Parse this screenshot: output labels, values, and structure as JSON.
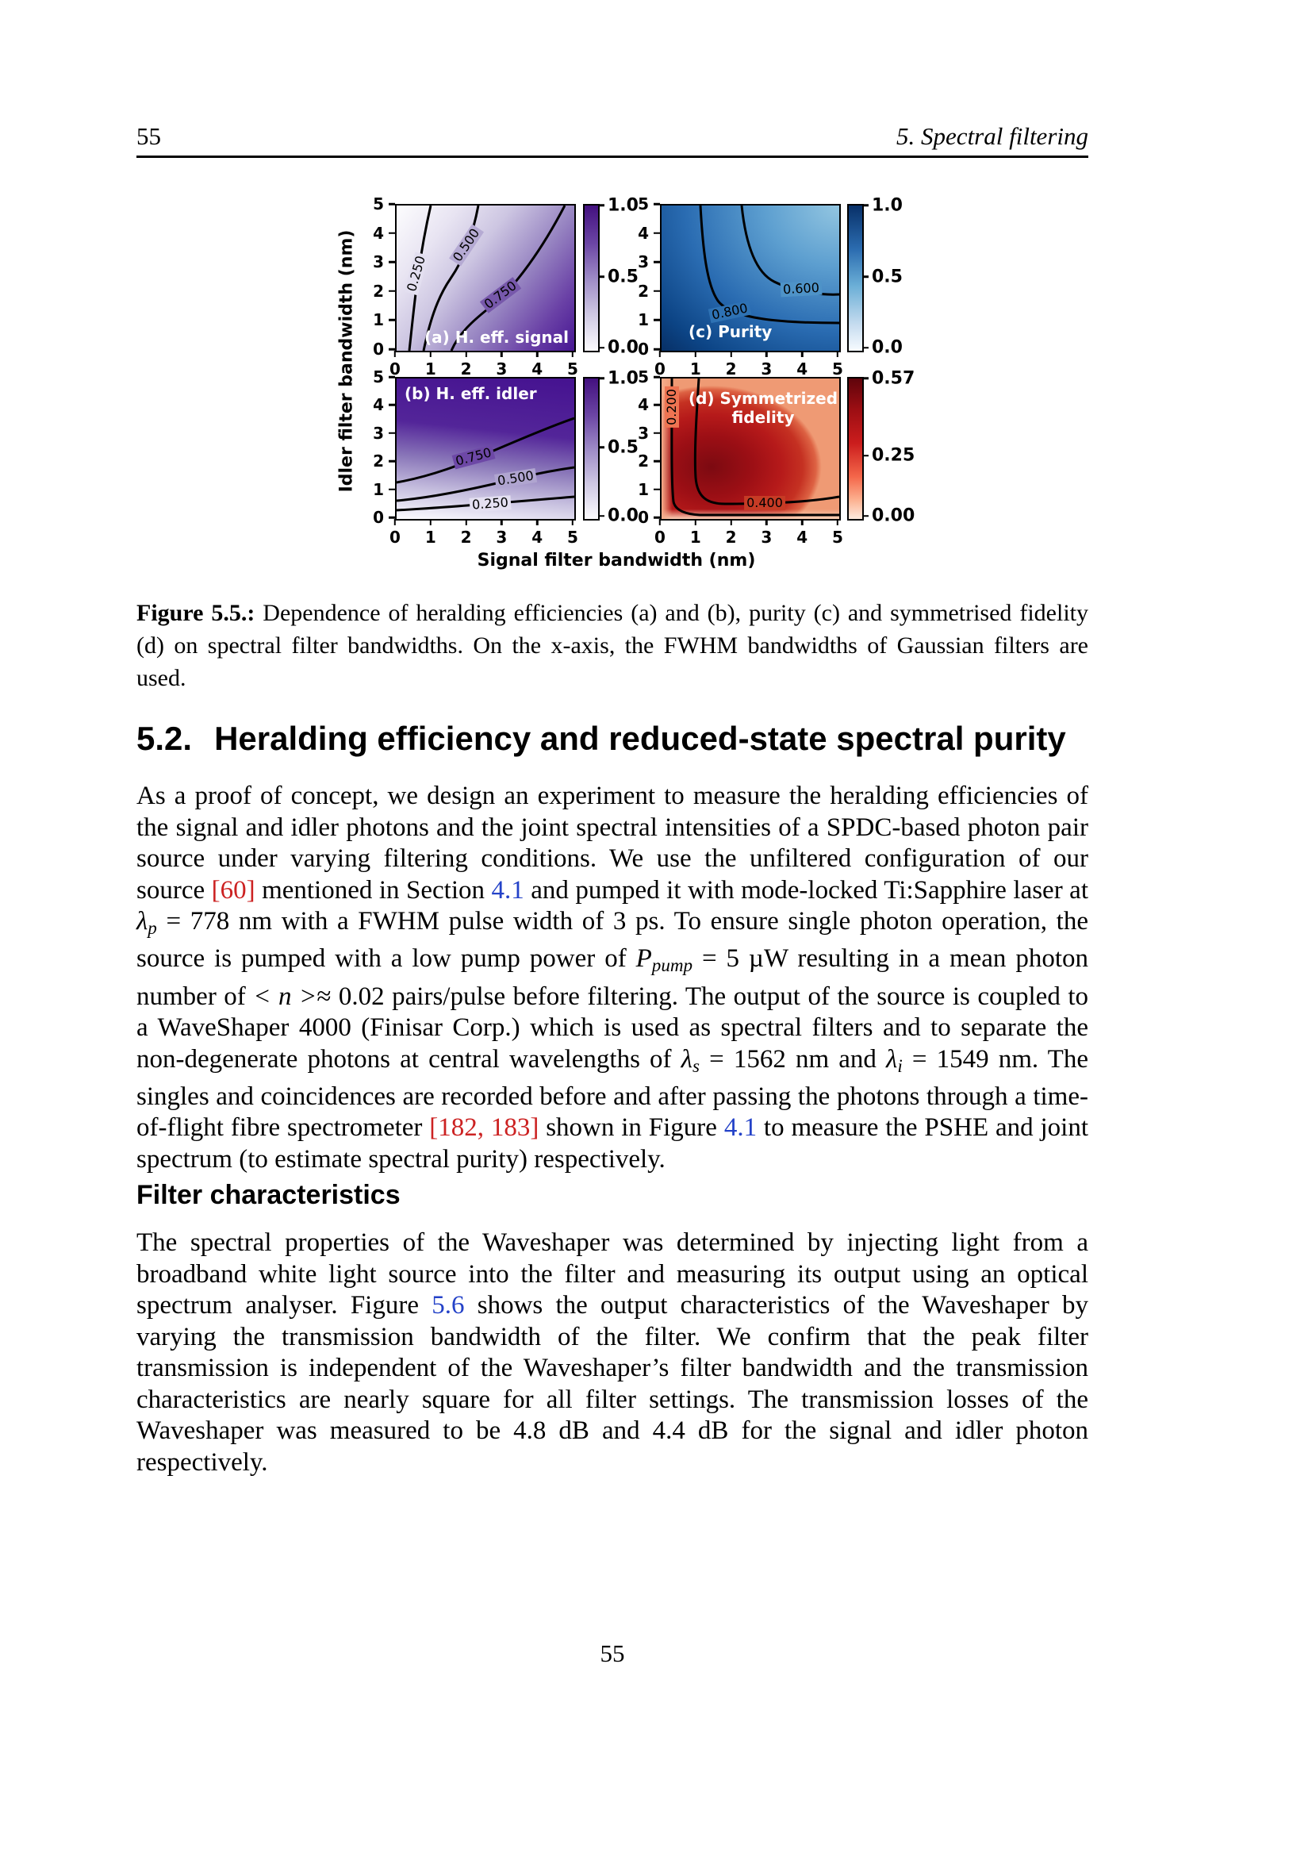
{
  "header": {
    "page_number": "55",
    "chapter": "5. Spectral filtering"
  },
  "figure": {
    "xticks": [
      "0",
      "1",
      "2",
      "3",
      "4",
      "5"
    ],
    "yticks": [
      "5",
      "4",
      "3",
      "2",
      "1",
      "0"
    ],
    "xlabel": "Signal filter bandwidth (nm)",
    "ylabel": "Idler filter bandwidth (nm)",
    "plots": {
      "a": {
        "label": "(a) H. eff. signal",
        "contours": [
          "0.250",
          "0.500",
          "0.750"
        ],
        "cb": [
          "1.0",
          "0.5",
          "0.0"
        ]
      },
      "c": {
        "label": "(c) Purity",
        "contours": [
          "0.800",
          "0.600"
        ],
        "cb": [
          "1.0",
          "0.5",
          "0.0"
        ]
      },
      "b": {
        "label": "(b) H. eff. idler",
        "contours": [
          "0.750",
          "0.500",
          "0.250"
        ],
        "cb": [
          "1.0",
          "0.5",
          "0.0"
        ]
      },
      "d": {
        "label": "(d) Symmetrized",
        "label2": "fidelity",
        "contours": [
          "0.200",
          "0.400"
        ],
        "cb": [
          "0.57",
          "0.25",
          "0.00"
        ]
      }
    }
  },
  "chart_data": [
    {
      "id": "a",
      "type": "contour",
      "title": "(a) H. eff. signal",
      "xlabel": "Signal filter bandwidth (nm)",
      "ylabel": "Idler filter bandwidth (nm)",
      "x_range": [
        0,
        5
      ],
      "y_range": [
        0,
        5
      ],
      "colormap": "Purples",
      "value_range": [
        0,
        1
      ],
      "colorbar_ticks": [
        1.0,
        0.5,
        0.0
      ],
      "contour_levels": [
        0.25,
        0.5,
        0.75
      ],
      "contour_paths": {
        "0.250": [
          [
            0.45,
            0
          ],
          [
            0.6,
            2.5
          ],
          [
            1.0,
            5
          ]
        ],
        "0.500": [
          [
            0.75,
            0
          ],
          [
            1.4,
            2.5
          ],
          [
            2.3,
            5
          ]
        ],
        "0.750": [
          [
            1.55,
            0
          ],
          [
            2.6,
            1.5
          ],
          [
            3.2,
            2.5
          ],
          [
            4.75,
            5
          ]
        ]
      },
      "shading": "light at top-left (low), dark purple at bottom-right (high)"
    },
    {
      "id": "c",
      "type": "contour",
      "title": "(c) Purity",
      "xlabel": "Signal filter bandwidth (nm)",
      "ylabel": "Idler filter bandwidth (nm)",
      "x_range": [
        0,
        5
      ],
      "y_range": [
        0,
        5
      ],
      "colormap": "Blues",
      "value_range": [
        0,
        1
      ],
      "colorbar_ticks": [
        1.0,
        0.5,
        0.0
      ],
      "contour_levels": [
        0.8,
        0.6
      ],
      "contour_paths": {
        "0.800": [
          [
            1.1,
            5
          ],
          [
            1.6,
            1.7
          ],
          [
            5,
            0.95
          ]
        ],
        "0.600": [
          [
            2.25,
            5
          ],
          [
            3.2,
            2.4
          ],
          [
            5,
            1.9
          ]
        ]
      },
      "shading": "dark blue (high purity) near small bandwidths, lighter toward top-right"
    },
    {
      "id": "b",
      "type": "contour",
      "title": "(b) H. eff. idler",
      "xlabel": "Signal filter bandwidth (nm)",
      "ylabel": "Idler filter bandwidth (nm)",
      "x_range": [
        0,
        5
      ],
      "y_range": [
        0,
        5
      ],
      "colormap": "Purples",
      "value_range": [
        0,
        1
      ],
      "colorbar_ticks": [
        1.0,
        0.5,
        0.0
      ],
      "contour_levels": [
        0.75,
        0.5,
        0.25
      ],
      "contour_paths": {
        "0.750": [
          [
            0,
            1.3
          ],
          [
            2,
            2.1
          ],
          [
            5,
            3.6
          ]
        ],
        "0.500": [
          [
            0,
            0.65
          ],
          [
            3,
            1.3
          ],
          [
            5,
            1.85
          ]
        ],
        "0.250": [
          [
            0,
            0.3
          ],
          [
            5,
            0.8
          ]
        ]
      },
      "shading": "dark purple at top (high), light at bottom (low)"
    },
    {
      "id": "d",
      "type": "contour",
      "title": "(d) Symmetrized fidelity",
      "xlabel": "Signal filter bandwidth (nm)",
      "ylabel": "Idler filter bandwidth (nm)",
      "x_range": [
        0,
        5
      ],
      "y_range": [
        0,
        5
      ],
      "colormap": "Reds",
      "value_range": [
        0,
        0.57
      ],
      "colorbar_ticks": [
        0.57,
        0.25,
        0.0
      ],
      "contour_levels": [
        0.2,
        0.4
      ],
      "contour_paths": {
        "0.200": [
          [
            0.3,
            5
          ],
          [
            0.3,
            0.5
          ],
          [
            0.8,
            0.15
          ],
          [
            5,
            0.15
          ]
        ],
        "0.400": [
          [
            1.05,
            5
          ],
          [
            1.0,
            0.8
          ],
          [
            2,
            0.5
          ],
          [
            5,
            0.75
          ]
        ]
      },
      "max_location": [
        1.5,
        1.8
      ],
      "shading": "darkest red (max ~0.57) near (1.5,1.8), light along left and bottom edges"
    }
  ],
  "caption": {
    "tag": "Figure 5.5.:",
    "text": " Dependence of heralding efficiencies (a) and (b), purity (c) and symmetrised fidelity (d) on spectral filter bandwidths. On the x-axis, the FWHM bandwidths of Gaussian filters are used."
  },
  "section": {
    "number": "5.2.",
    "title": "Heralding efficiency and reduced-state spectral purity"
  },
  "para1": [
    {
      "t": "tx",
      "v": "As a proof of concept, we design an experiment to measure the heralding efficiencies of the signal and idler photons and the joint spectral intensities of a SPDC-based photon pair source under varying filtering conditions. We use the unfiltered configuration of our source "
    },
    {
      "t": "cite",
      "v": "[60]"
    },
    {
      "t": "tx",
      "v": " mentioned in Section "
    },
    {
      "t": "ref",
      "v": "4.1"
    },
    {
      "t": "tx",
      "v": " and pumped it with mode-locked Ti:Sapphire laser at "
    },
    {
      "t": "it",
      "v": "λ"
    },
    {
      "t": "sb",
      "v": "p"
    },
    {
      "t": "tx",
      "v": " = 778 nm with a FWHM pulse width of 3 ps. To ensure single photon operation, the source is pumped with a low pump power of "
    },
    {
      "t": "it",
      "v": "P"
    },
    {
      "t": "sb",
      "v": "pump"
    },
    {
      "t": "tx",
      "v": " = 5 µW resulting in a mean photon number of "
    },
    {
      "t": "it",
      "v": "< n >"
    },
    {
      "t": "tx",
      "v": "≈ 0.02 pairs/pulse before filtering. The output of the source is coupled to a WaveShaper 4000 (Finisar Corp.) which is used as spectral filters and to separate the non-degenerate photons at central wavelengths of "
    },
    {
      "t": "it",
      "v": "λ"
    },
    {
      "t": "sb",
      "v": "s"
    },
    {
      "t": "tx",
      "v": " = 1562 nm and "
    },
    {
      "t": "it",
      "v": "λ"
    },
    {
      "t": "sb",
      "v": "i"
    },
    {
      "t": "tx",
      "v": " = 1549 nm. The singles and coincidences are recorded before and after passing the photons through a time-of-flight fibre spectrometer "
    },
    {
      "t": "cite",
      "v": "[182, 183]"
    },
    {
      "t": "tx",
      "v": " shown in Figure "
    },
    {
      "t": "ref",
      "v": "4.1"
    },
    {
      "t": "tx",
      "v": " to measure the PSHE and joint spectrum (to estimate spectral purity) respectively."
    }
  ],
  "subsection": {
    "title": "Filter characteristics"
  },
  "para2": [
    {
      "t": "tx",
      "v": "The spectral properties of the Waveshaper was determined by injecting light from a broadband white light source into the filter and measuring its output using an optical spectrum analyser. Figure "
    },
    {
      "t": "ref",
      "v": "5.6"
    },
    {
      "t": "tx",
      "v": " shows the output characteristics of the Waveshaper by varying the transmission bandwidth of the filter. We confirm that the peak filter transmission is independent of the Waveshaper’s filter bandwidth and the transmission characteristics are nearly square for all filter settings. The transmission losses of the Waveshaper was measured to be 4.8 dB and 4.4 dB for the signal and idler photon respectively."
    }
  ],
  "footer": {
    "page_number": "55"
  }
}
